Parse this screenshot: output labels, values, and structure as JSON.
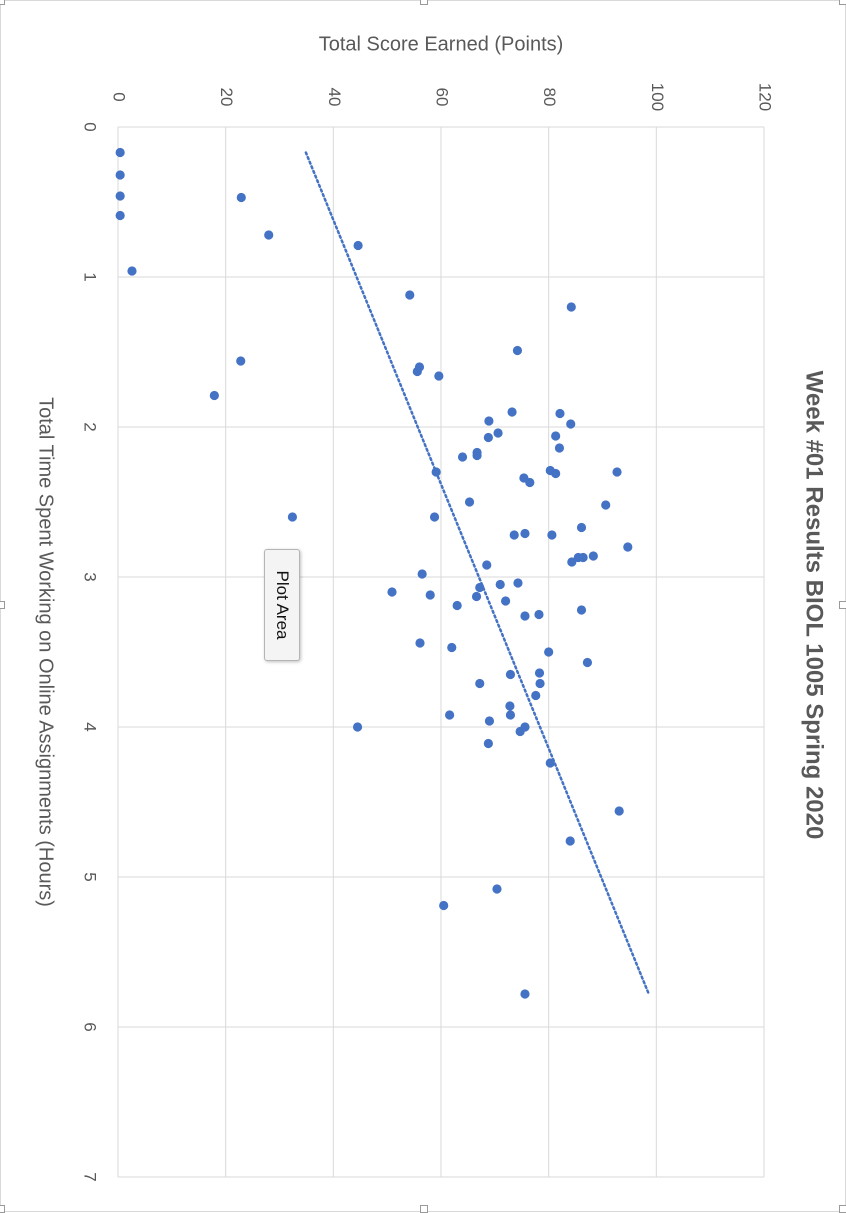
{
  "chart_data": {
    "type": "scatter",
    "title": "Week #01 Results BIOL 1005 Spring 2020",
    "xlabel": "Total Time Spent Working on Online Assignments (Hours)",
    "ylabel": "Total Score Earned (Points)",
    "xlim": [
      0,
      7
    ],
    "ylim": [
      0,
      120
    ],
    "x_ticks": [
      0,
      1,
      2,
      3,
      4,
      5,
      6,
      7
    ],
    "y_ticks": [
      0,
      20,
      40,
      60,
      80,
      100,
      120
    ],
    "grid": true,
    "orientation": "rotated-90-clockwise",
    "colors": {
      "marker": "#4472c4",
      "trendline": "#4472c4",
      "grid": "#d9d9d9",
      "text": "#595959"
    },
    "series": [
      {
        "points": [
          [
            0.17,
            0.4
          ],
          [
            0.32,
            0.4
          ],
          [
            0.46,
            0.4
          ],
          [
            0.59,
            0.4
          ],
          [
            0.96,
            2.6
          ],
          [
            0.47,
            22.9
          ],
          [
            0.72,
            28
          ],
          [
            0.79,
            44.6
          ],
          [
            1.12,
            54.2
          ],
          [
            1.2,
            84.2
          ],
          [
            1.49,
            74.2
          ],
          [
            1.56,
            22.8
          ],
          [
            1.6,
            56
          ],
          [
            1.63,
            55.6
          ],
          [
            1.66,
            59.6
          ],
          [
            1.79,
            17.9
          ],
          [
            1.9,
            73.2
          ],
          [
            1.91,
            82.1
          ],
          [
            1.96,
            68.9
          ],
          [
            1.98,
            84.1
          ],
          [
            2.04,
            70.6
          ],
          [
            2.06,
            81.3
          ],
          [
            2.07,
            68.8
          ],
          [
            2.14,
            82
          ],
          [
            2.17,
            66.7
          ],
          [
            2.19,
            66.7
          ],
          [
            2.2,
            64
          ],
          [
            2.29,
            80.3
          ],
          [
            2.3,
            59.1
          ],
          [
            2.3,
            92.7
          ],
          [
            2.31,
            81.3
          ],
          [
            2.34,
            75.4
          ],
          [
            2.37,
            76.5
          ],
          [
            2.5,
            65.3
          ],
          [
            2.52,
            90.6
          ],
          [
            2.6,
            58.8
          ],
          [
            2.6,
            32.4
          ],
          [
            2.67,
            86.1
          ],
          [
            2.71,
            75.6
          ],
          [
            2.72,
            73.6
          ],
          [
            2.72,
            80.6
          ],
          [
            2.8,
            94.7
          ],
          [
            2.86,
            88.3
          ],
          [
            2.87,
            85.5
          ],
          [
            2.87,
            86.4
          ],
          [
            2.9,
            84.3
          ],
          [
            2.92,
            68.5
          ],
          [
            2.98,
            56.5
          ],
          [
            3.04,
            74.3
          ],
          [
            3.05,
            71
          ],
          [
            3.07,
            67.2
          ],
          [
            3.1,
            50.9
          ],
          [
            3.12,
            58
          ],
          [
            3.13,
            66.6
          ],
          [
            3.16,
            72
          ],
          [
            3.19,
            63
          ],
          [
            3.22,
            86.1
          ],
          [
            3.25,
            78.2
          ],
          [
            3.26,
            75.6
          ],
          [
            3.44,
            56.1
          ],
          [
            3.47,
            62
          ],
          [
            3.5,
            80
          ],
          [
            3.57,
            87.2
          ],
          [
            3.64,
            78.3
          ],
          [
            3.65,
            72.9
          ],
          [
            3.71,
            67.2
          ],
          [
            3.71,
            78.4
          ],
          [
            3.79,
            77.6
          ],
          [
            3.86,
            72.8
          ],
          [
            3.92,
            61.6
          ],
          [
            3.92,
            72.9
          ],
          [
            3.96,
            69
          ],
          [
            4,
            44.5
          ],
          [
            4,
            75.6
          ],
          [
            4.03,
            74.7
          ],
          [
            4.11,
            68.8
          ],
          [
            4.24,
            80.3
          ],
          [
            4.56,
            93.1
          ],
          [
            4.76,
            84
          ],
          [
            5.08,
            70.4
          ],
          [
            5.19,
            60.5
          ],
          [
            5.78,
            75.6
          ]
        ]
      }
    ],
    "trendline": {
      "type": "linear",
      "style": "dotted",
      "from": [
        0.17,
        34.9
      ],
      "to": [
        5.78,
        98.6
      ]
    },
    "annotations": {
      "tooltip": "Plot Area"
    }
  }
}
